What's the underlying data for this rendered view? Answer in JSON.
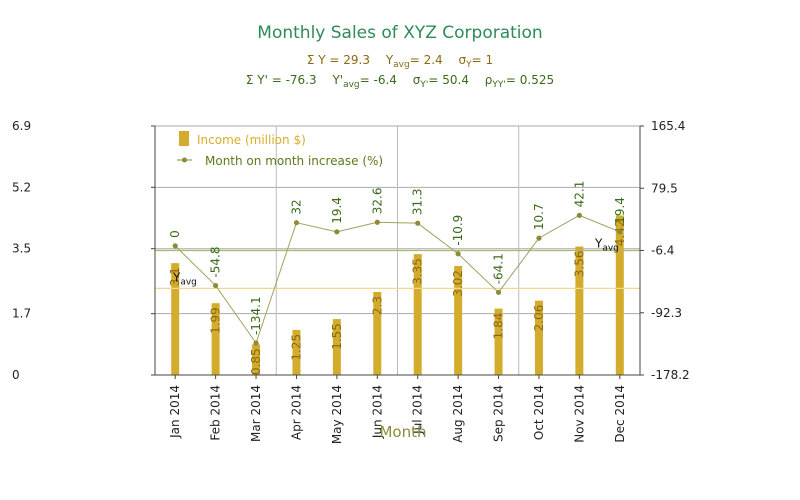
{
  "chart_data": {
    "type": "bar",
    "title": "Monthly Sales of XYZ Corporation",
    "stats_income": {
      "sum": "Σ Y = 29.3",
      "avg_main": "Y",
      "avg_sub": "avg",
      "avg_value": "= 2.4",
      "sigma_main": "σ",
      "sigma_sub": "Y",
      "sigma_value": "= 1"
    },
    "stats_increase": {
      "sum": "Σ Y' = -76.3",
      "avg_main": "Y'",
      "avg_sub": "avg",
      "avg_value": "= -6.4",
      "sigma_main": "σ",
      "sigma_sub": "Y'",
      "sigma_value": "= 50.4",
      "rho_main": "ρ",
      "rho_sub": "YY'",
      "rho_value": "= 0.525"
    },
    "xlabel": "Month",
    "categories": [
      "Jan 2014",
      "Feb 2014",
      "Mar 2014",
      "Apr 2014",
      "May 2014",
      "Jun 2014",
      "Jul 2014",
      "Aug 2014",
      "Sep 2014",
      "Oct 2014",
      "Nov 2014",
      "Dec 2014"
    ],
    "series": [
      {
        "name": "Income (million $)",
        "type": "bar",
        "axis": "left",
        "color": "#d4ac2c",
        "values": [
          3.1,
          1.99,
          0.85,
          1.25,
          1.55,
          2.3,
          3.35,
          3.02,
          1.84,
          2.06,
          3.56,
          4.42
        ],
        "labels": [
          "3.1",
          "1.99",
          "0.85",
          "1.25",
          "1.55",
          "2.3",
          "3.35",
          "3.02",
          "1.84",
          "2.06",
          "3.56",
          "4.42"
        ]
      },
      {
        "name": "Month on month increase (%)",
        "type": "line",
        "axis": "right",
        "color": "#8b8b3a",
        "values": [
          0,
          -54.8,
          -134.1,
          32,
          19.4,
          32.6,
          31.3,
          -10.9,
          -64.1,
          10.7,
          42.1,
          19.4
        ],
        "labels": [
          "0",
          "-54.8",
          "-134.1",
          "32",
          "19.4",
          "32.6",
          "31.3",
          "-10.9",
          "-64.1",
          "10.7",
          "42.1",
          "19.4"
        ]
      }
    ],
    "left_axis": {
      "ylim": [
        0,
        6.9
      ],
      "ticks": [
        0,
        1.7,
        3.5,
        5.2,
        6.9
      ],
      "tick_labels": [
        "0",
        "1.7",
        "3.5",
        "5.2",
        "6.9"
      ]
    },
    "right_axis": {
      "ylim": [
        -178.2,
        165.4
      ],
      "ticks": [
        -178.2,
        -92.3,
        -6.4,
        79.5,
        165.4
      ],
      "tick_labels": [
        "-178.2",
        "-92.3",
        "-6.4",
        "79.5",
        "165.4"
      ]
    },
    "avg_lines": [
      {
        "label_main": "Y",
        "label_sub": "avg",
        "value": 2.4,
        "axis": "left",
        "color": "#f0d890"
      },
      {
        "label_main": "Y",
        "label_sub": "avg",
        "value": -6.4,
        "axis": "right",
        "color": "#a8b870"
      }
    ],
    "grid": true,
    "legend_position": "top-left"
  }
}
